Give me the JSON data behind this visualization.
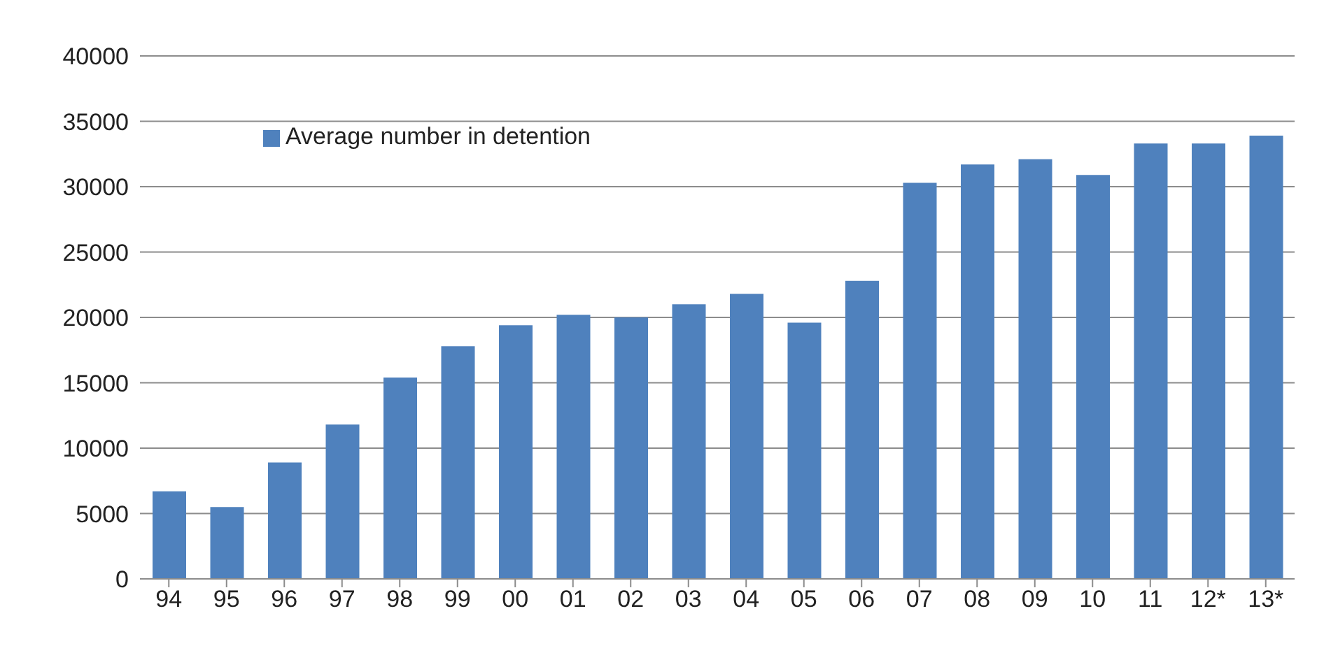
{
  "chart_data": {
    "type": "bar",
    "categories": [
      "94",
      "95",
      "96",
      "97",
      "98",
      "99",
      "00",
      "01",
      "02",
      "03",
      "04",
      "05",
      "06",
      "07",
      "08",
      "09",
      "10",
      "11",
      "12*",
      "13*"
    ],
    "series": [
      {
        "name": "Average number in detention",
        "color": "#4f81bd",
        "values": [
          6700,
          5500,
          8900,
          11800,
          15400,
          17800,
          19400,
          20200,
          20000,
          21000,
          21800,
          19600,
          22800,
          30300,
          31700,
          32100,
          30900,
          33300,
          33300,
          33900
        ]
      }
    ],
    "ylim": [
      0,
      40000
    ],
    "yticks": [
      0,
      5000,
      10000,
      15000,
      20000,
      25000,
      30000,
      35000,
      40000
    ],
    "grid": "y",
    "legend": "top left"
  }
}
